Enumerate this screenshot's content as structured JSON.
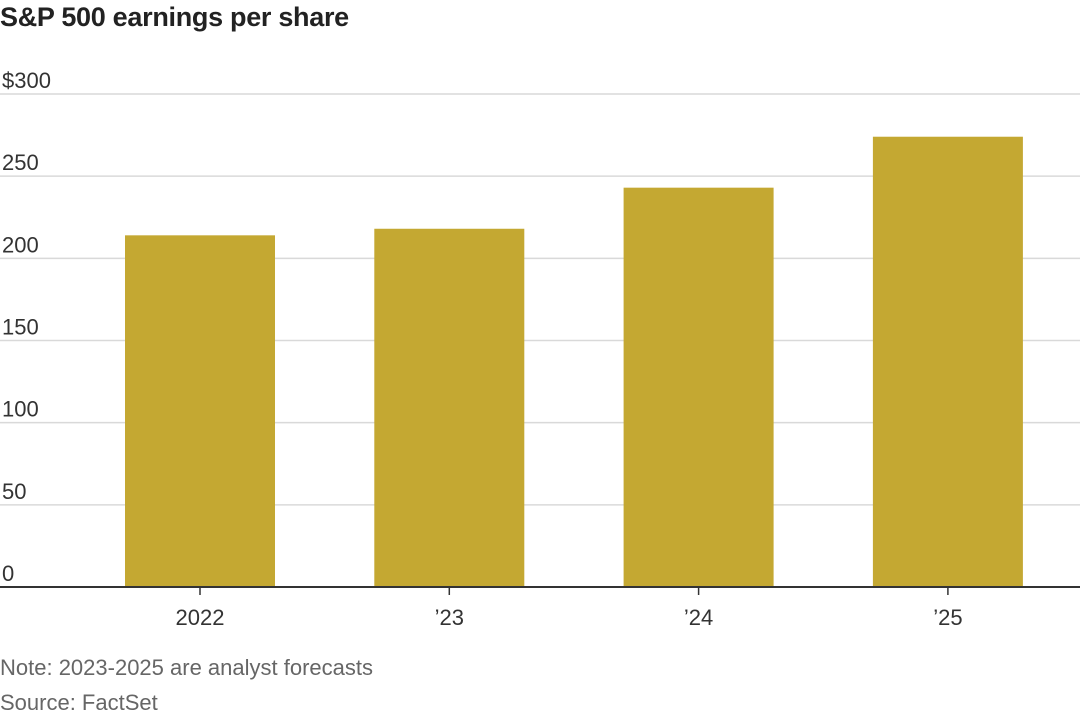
{
  "title": "S&P 500 earnings per share",
  "note": "Note: 2023-2025 are analyst forecasts",
  "source": "Source: FactSet",
  "colors": {
    "bar": "#c4a832",
    "grid": "#d9d9d9",
    "axis": "#333333"
  },
  "chart_data": {
    "type": "bar",
    "categories": [
      "2022",
      "’23",
      "’24",
      "’25"
    ],
    "values": [
      214,
      218,
      243,
      274
    ],
    "ylim": [
      0,
      300
    ],
    "yticks": [
      0,
      50,
      100,
      150,
      200,
      250,
      300
    ],
    "ytick_labels": [
      "0",
      "50",
      "100",
      "150",
      "200",
      "250",
      "$300"
    ],
    "grid": true,
    "xlabel": "",
    "ylabel": ""
  }
}
